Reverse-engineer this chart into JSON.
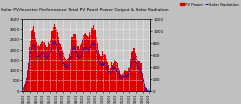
{
  "bg_color": "#c0c0c0",
  "plot_bg": "#c8c8c8",
  "bar_color": "#dd0000",
  "line_color": "#0000dd",
  "grid_color": "#ffffff",
  "ylim_left": [
    0,
    3500
  ],
  "ylim_right": [
    0,
    1200
  ],
  "legend_bar_label": "PV Power",
  "legend_line_label": "Solar Radiation",
  "tick_fontsize": 2.8,
  "title_fontsize": 3.2,
  "title": "Solar PV/Inverter Performance Total PV Panel Power Output & Solar Radiation",
  "right_yticks": [
    0,
    200,
    400,
    600,
    800,
    1000,
    1200
  ],
  "left_yticks": [
    0,
    500,
    1000,
    1500,
    2000,
    2500,
    3000,
    3500
  ]
}
